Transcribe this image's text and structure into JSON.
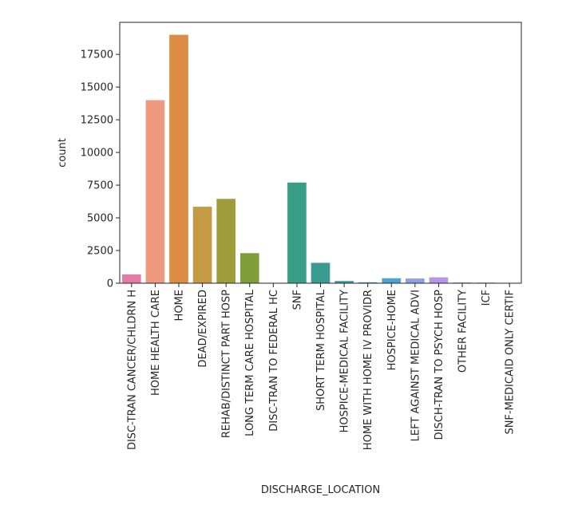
{
  "chart_data": {
    "type": "bar",
    "xlabel": "DISCHARGE_LOCATION",
    "ylabel": "count",
    "categories": [
      "DISC-TRAN CANCER/CHLDRN H",
      "HOME HEALTH CARE",
      "HOME",
      "DEAD/EXPIRED",
      "REHAB/DISTINCT PART HOSP",
      "LONG TERM CARE HOSPITAL",
      "DISC-TRAN TO FEDERAL HC",
      "SNF",
      "SHORT TERM HOSPITAL",
      "HOSPICE-MEDICAL FACILITY",
      "HOME WITH HOME IV PROVIDR",
      "HOSPICE-HOME",
      "LEFT AGAINST MEDICAL ADVI",
      "DISCH-TRAN TO PSYCH HOSP",
      "OTHER FACILITY",
      "ICF",
      "SNF-MEDICAID ONLY CERTIF"
    ],
    "values": [
      670,
      14000,
      19000,
      5850,
      6450,
      2300,
      10,
      7700,
      1560,
      170,
      70,
      380,
      360,
      450,
      60,
      50,
      10
    ],
    "colors": [
      "#e67aa4",
      "#ee9a7f",
      "#db8d45",
      "#c59a45",
      "#9e9d3a",
      "#7f9e3a",
      "#3d9e55",
      "#3a9e86",
      "#3a9b93",
      "#3a9ca5",
      "#3aa1b4",
      "#4ca3d3",
      "#8d9ee6",
      "#b696e6",
      "#d88ce0",
      "#e488c6",
      "#e77fa8"
    ],
    "yticks": [
      0,
      2500,
      5000,
      7500,
      10000,
      12500,
      15000,
      17500
    ],
    "ylim": [
      0,
      19950
    ],
    "grid": false,
    "legend": "none"
  }
}
